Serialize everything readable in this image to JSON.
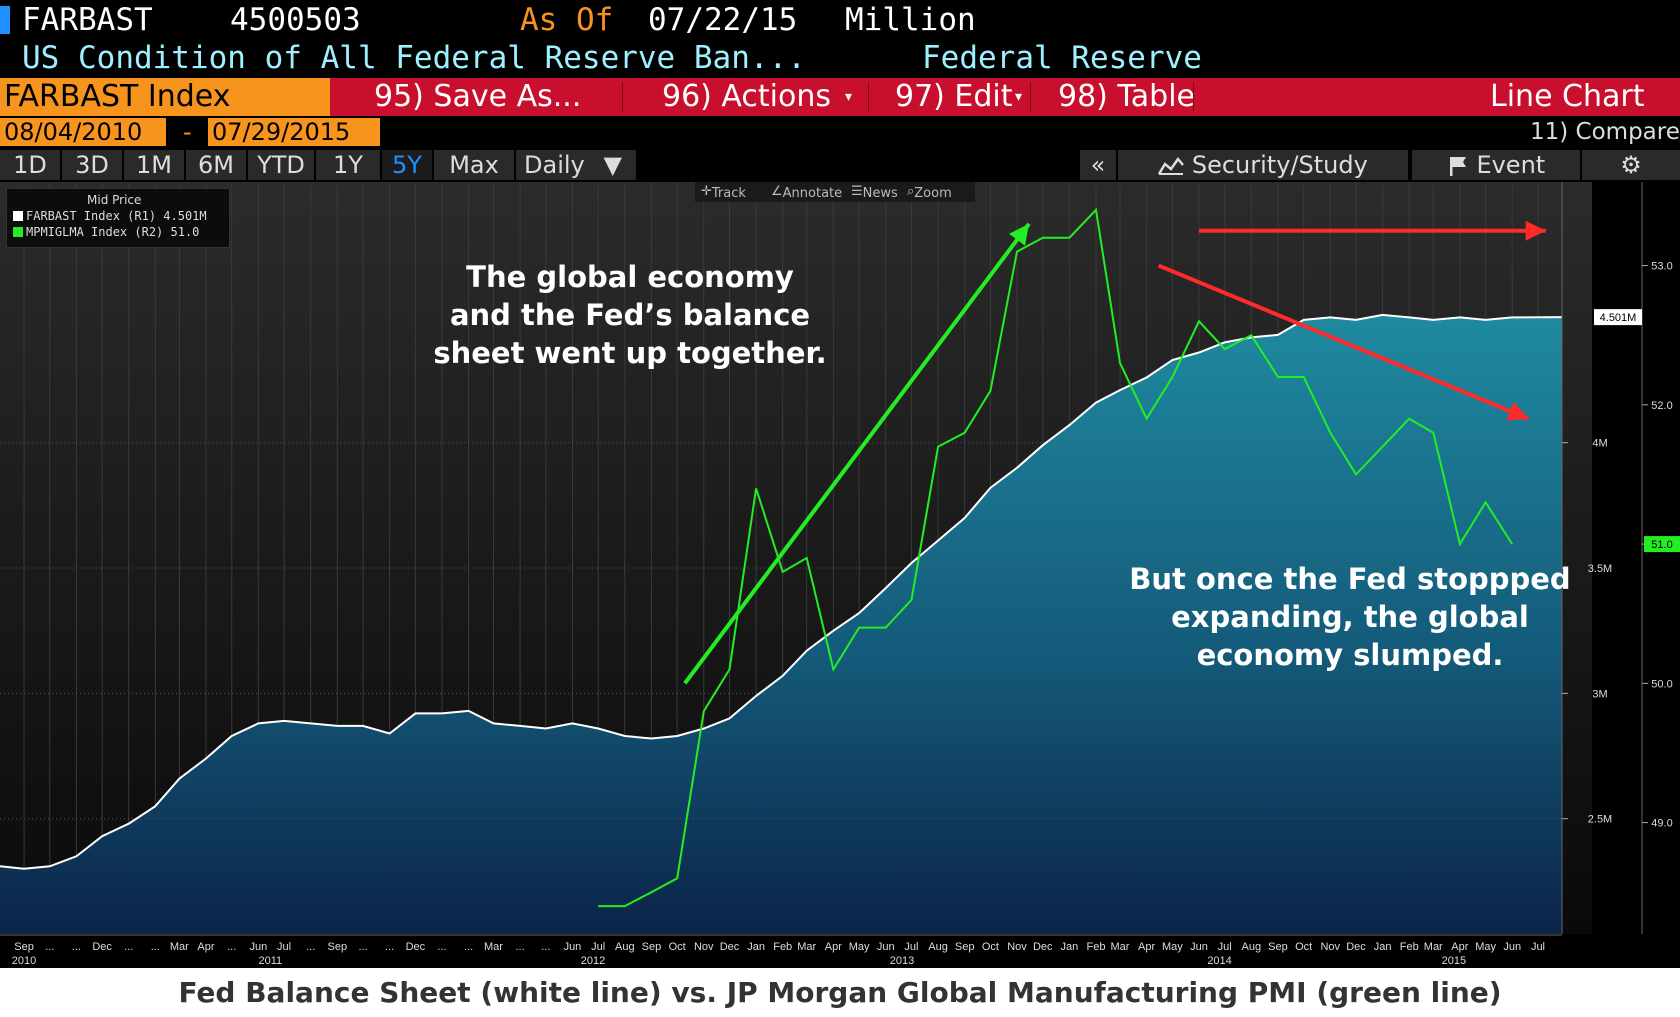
{
  "header": {
    "ticker": "FARBAST",
    "value": "4500503",
    "as_of_label": "As Of",
    "as_of_date": "07/22/15",
    "units": "Million",
    "description": "US Condition of All Federal Reserve Ban...",
    "source": "Federal Reserve"
  },
  "toolbar": {
    "index_label": "FARBAST Index",
    "save_as": "95) Save As...",
    "actions": "96) Actions",
    "edit": "97) Edit",
    "table": "98) Table",
    "chart_type": "Line Chart",
    "compare": "11) Compare"
  },
  "date_range": {
    "start": "08/04/2010",
    "dash": "-",
    "end": "07/29/2015"
  },
  "periods": [
    "1D",
    "3D",
    "1M",
    "6M",
    "YTD",
    "1Y",
    "5Y",
    "Max"
  ],
  "selected_period": "5Y",
  "frequency": "Daily",
  "frequency_arrow": "▼",
  "collapse_label": "«",
  "security_study": "Security/Study",
  "event": "Event",
  "chart_tools": {
    "track": "Track",
    "annotate": "Annotate",
    "news": "News",
    "zoom": "Zoom"
  },
  "legend": {
    "title": "Mid Price",
    "row1": "FARBAST Index  (R1)    4.501M",
    "row2": "MPMIGLMA Index  (R2) 51.0"
  },
  "annotations": {
    "up_text": "The global economy\nand the Fed’s balance\nsheet went up together.",
    "down_text": "But once the Fed stoppped\nexpanding, the global\neconomy slumped."
  },
  "caption": "Fed Balance Sheet (white line) vs. JP Morgan Global Manufacturing PMI (green line)",
  "colors": {
    "fed": "#ffffff",
    "pmi": "#22ee22",
    "accent": "#f7941d",
    "bar": "#c8102e",
    "arrow_up": "#22ee22",
    "arrow_down": "#ff2a2a"
  },
  "chart_data": {
    "type": "line",
    "xlim": [
      "2010-08-04",
      "2015-07-29"
    ],
    "y1_ticks": [
      {
        "v": 2.5,
        "label": "2.5M"
      },
      {
        "v": 3.0,
        "label": "3M"
      },
      {
        "v": 3.5,
        "label": "3.5M"
      },
      {
        "v": 4.0,
        "label": "4M"
      }
    ],
    "y1lim": [
      2.04,
      5.04
    ],
    "y1_last_label": "4.501M",
    "y2_ticks": [
      {
        "v": 49.0,
        "label": "49.0"
      },
      {
        "v": 50.0,
        "label": "50.0"
      },
      {
        "v": 51.0,
        "label": "51.0"
      },
      {
        "v": 52.0,
        "label": "52.0"
      },
      {
        "v": 53.0,
        "label": "53.0"
      }
    ],
    "y2lim": [
      48.2,
      53.6
    ],
    "y2_last_label": "51.0",
    "month_ticks": [
      {
        "d": "2010-09-01",
        "l": "Sep"
      },
      {
        "d": "2010-10-01",
        "l": "..."
      },
      {
        "d": "2010-11-01",
        "l": "..."
      },
      {
        "d": "2010-12-01",
        "l": "Dec"
      },
      {
        "d": "2011-01-01",
        "l": "..."
      },
      {
        "d": "2011-02-01",
        "l": "..."
      },
      {
        "d": "2011-03-01",
        "l": "Mar"
      },
      {
        "d": "2011-04-01",
        "l": "Apr"
      },
      {
        "d": "2011-05-01",
        "l": "..."
      },
      {
        "d": "2011-06-01",
        "l": "Jun"
      },
      {
        "d": "2011-07-01",
        "l": "Jul"
      },
      {
        "d": "2011-08-01",
        "l": "..."
      },
      {
        "d": "2011-09-01",
        "l": "Sep"
      },
      {
        "d": "2011-10-01",
        "l": "..."
      },
      {
        "d": "2011-11-01",
        "l": "..."
      },
      {
        "d": "2011-12-01",
        "l": "Dec"
      },
      {
        "d": "2012-01-01",
        "l": "..."
      },
      {
        "d": "2012-02-01",
        "l": "..."
      },
      {
        "d": "2012-03-01",
        "l": "Mar"
      },
      {
        "d": "2012-04-01",
        "l": "..."
      },
      {
        "d": "2012-05-01",
        "l": "..."
      },
      {
        "d": "2012-06-01",
        "l": "Jun"
      },
      {
        "d": "2012-07-01",
        "l": "Jul"
      },
      {
        "d": "2012-08-01",
        "l": "Aug"
      },
      {
        "d": "2012-09-01",
        "l": "Sep"
      },
      {
        "d": "2012-10-01",
        "l": "Oct"
      },
      {
        "d": "2012-11-01",
        "l": "Nov"
      },
      {
        "d": "2012-12-01",
        "l": "Dec"
      },
      {
        "d": "2013-01-01",
        "l": "Jan"
      },
      {
        "d": "2013-02-01",
        "l": "Feb"
      },
      {
        "d": "2013-03-01",
        "l": "Mar"
      },
      {
        "d": "2013-04-01",
        "l": "Apr"
      },
      {
        "d": "2013-05-01",
        "l": "May"
      },
      {
        "d": "2013-06-01",
        "l": "Jun"
      },
      {
        "d": "2013-07-01",
        "l": "Jul"
      },
      {
        "d": "2013-08-01",
        "l": "Aug"
      },
      {
        "d": "2013-09-01",
        "l": "Sep"
      },
      {
        "d": "2013-10-01",
        "l": "Oct"
      },
      {
        "d": "2013-11-01",
        "l": "Nov"
      },
      {
        "d": "2013-12-01",
        "l": "Dec"
      },
      {
        "d": "2014-01-01",
        "l": "Jan"
      },
      {
        "d": "2014-02-01",
        "l": "Feb"
      },
      {
        "d": "2014-03-01",
        "l": "Mar"
      },
      {
        "d": "2014-04-01",
        "l": "Apr"
      },
      {
        "d": "2014-05-01",
        "l": "May"
      },
      {
        "d": "2014-06-01",
        "l": "Jun"
      },
      {
        "d": "2014-07-01",
        "l": "Jul"
      },
      {
        "d": "2014-08-01",
        "l": "Aug"
      },
      {
        "d": "2014-09-01",
        "l": "Sep"
      },
      {
        "d": "2014-10-01",
        "l": "Oct"
      },
      {
        "d": "2014-11-01",
        "l": "Nov"
      },
      {
        "d": "2014-12-01",
        "l": "Dec"
      },
      {
        "d": "2015-01-01",
        "l": "Jan"
      },
      {
        "d": "2015-02-01",
        "l": "Feb"
      },
      {
        "d": "2015-03-01",
        "l": "Mar"
      },
      {
        "d": "2015-04-01",
        "l": "Apr"
      },
      {
        "d": "2015-05-01",
        "l": "May"
      },
      {
        "d": "2015-06-01",
        "l": "Jun"
      },
      {
        "d": "2015-07-01",
        "l": "Jul"
      }
    ],
    "year_labels": [
      {
        "d": "2010-09-01",
        "l": "2010"
      },
      {
        "d": "2011-06-15",
        "l": "2011"
      },
      {
        "d": "2012-06-25",
        "l": "2012"
      },
      {
        "d": "2013-06-20",
        "l": "2013"
      },
      {
        "d": "2014-06-25",
        "l": "2014"
      },
      {
        "d": "2015-03-25",
        "l": "2015"
      }
    ],
    "series": [
      {
        "name": "FARBAST Index",
        "axis": "R1",
        "units": "Million (trillions shown as M)",
        "points": [
          [
            "2010-08-04",
            2.31
          ],
          [
            "2010-09-01",
            2.3
          ],
          [
            "2010-10-01",
            2.31
          ],
          [
            "2010-11-01",
            2.35
          ],
          [
            "2010-12-01",
            2.43
          ],
          [
            "2011-01-01",
            2.48
          ],
          [
            "2011-02-01",
            2.55
          ],
          [
            "2011-03-01",
            2.66
          ],
          [
            "2011-04-01",
            2.74
          ],
          [
            "2011-05-01",
            2.83
          ],
          [
            "2011-06-01",
            2.88
          ],
          [
            "2011-07-01",
            2.89
          ],
          [
            "2011-08-01",
            2.88
          ],
          [
            "2011-09-01",
            2.87
          ],
          [
            "2011-10-01",
            2.87
          ],
          [
            "2011-11-01",
            2.84
          ],
          [
            "2011-12-01",
            2.92
          ],
          [
            "2012-01-01",
            2.92
          ],
          [
            "2012-02-01",
            2.93
          ],
          [
            "2012-03-01",
            2.88
          ],
          [
            "2012-04-01",
            2.87
          ],
          [
            "2012-05-01",
            2.86
          ],
          [
            "2012-06-01",
            2.88
          ],
          [
            "2012-07-01",
            2.86
          ],
          [
            "2012-08-01",
            2.83
          ],
          [
            "2012-09-01",
            2.82
          ],
          [
            "2012-10-01",
            2.83
          ],
          [
            "2012-11-01",
            2.86
          ],
          [
            "2012-12-01",
            2.9
          ],
          [
            "2013-01-01",
            2.99
          ],
          [
            "2013-02-01",
            3.07
          ],
          [
            "2013-03-01",
            3.17
          ],
          [
            "2013-04-01",
            3.25
          ],
          [
            "2013-05-01",
            3.32
          ],
          [
            "2013-06-01",
            3.42
          ],
          [
            "2013-07-01",
            3.52
          ],
          [
            "2013-08-01",
            3.61
          ],
          [
            "2013-09-01",
            3.7
          ],
          [
            "2013-10-01",
            3.82
          ],
          [
            "2013-11-01",
            3.9
          ],
          [
            "2013-12-01",
            3.99
          ],
          [
            "2014-01-01",
            4.07
          ],
          [
            "2014-02-01",
            4.16
          ],
          [
            "2014-03-01",
            4.21
          ],
          [
            "2014-04-01",
            4.26
          ],
          [
            "2014-05-01",
            4.33
          ],
          [
            "2014-06-01",
            4.36
          ],
          [
            "2014-07-01",
            4.4
          ],
          [
            "2014-08-01",
            4.42
          ],
          [
            "2014-09-01",
            4.43
          ],
          [
            "2014-10-01",
            4.49
          ],
          [
            "2014-11-01",
            4.5
          ],
          [
            "2014-12-01",
            4.49
          ],
          [
            "2015-01-01",
            4.51
          ],
          [
            "2015-02-01",
            4.5
          ],
          [
            "2015-03-01",
            4.49
          ],
          [
            "2015-04-01",
            4.5
          ],
          [
            "2015-05-01",
            4.49
          ],
          [
            "2015-06-01",
            4.5
          ],
          [
            "2015-07-29",
            4.501
          ]
        ]
      },
      {
        "name": "MPMIGLMA Index",
        "axis": "R2",
        "points": [
          [
            "2012-07-01",
            48.4
          ],
          [
            "2012-08-01",
            48.4
          ],
          [
            "2012-09-01",
            48.5
          ],
          [
            "2012-10-01",
            48.6
          ],
          [
            "2012-11-01",
            49.8
          ],
          [
            "2012-12-01",
            50.1
          ],
          [
            "2013-01-01",
            51.4
          ],
          [
            "2013-02-01",
            50.8
          ],
          [
            "2013-03-01",
            50.9
          ],
          [
            "2013-04-01",
            50.1
          ],
          [
            "2013-05-01",
            50.4
          ],
          [
            "2013-06-01",
            50.4
          ],
          [
            "2013-07-01",
            50.6
          ],
          [
            "2013-08-01",
            51.7
          ],
          [
            "2013-09-01",
            51.8
          ],
          [
            "2013-10-01",
            52.1
          ],
          [
            "2013-11-01",
            53.1
          ],
          [
            "2013-12-01",
            53.2
          ],
          [
            "2014-01-01",
            53.2
          ],
          [
            "2014-02-01",
            53.4
          ],
          [
            "2014-03-01",
            52.3
          ],
          [
            "2014-04-01",
            51.9
          ],
          [
            "2014-05-01",
            52.2
          ],
          [
            "2014-06-01",
            52.6
          ],
          [
            "2014-07-01",
            52.4
          ],
          [
            "2014-08-01",
            52.5
          ],
          [
            "2014-09-01",
            52.2
          ],
          [
            "2014-10-01",
            52.2
          ],
          [
            "2014-11-01",
            51.8
          ],
          [
            "2014-12-01",
            51.5
          ],
          [
            "2015-01-01",
            51.7
          ],
          [
            "2015-02-01",
            51.9
          ],
          [
            "2015-03-01",
            51.8
          ],
          [
            "2015-04-01",
            51.0
          ],
          [
            "2015-05-01",
            51.3
          ],
          [
            "2015-06-01",
            51.0
          ]
        ]
      }
    ],
    "arrows": [
      {
        "series_axis": "R2",
        "from": [
          "2012-10-10",
          50.0
        ],
        "to": [
          "2013-11-15",
          53.3
        ],
        "color": "green"
      },
      {
        "series_axis": "R2",
        "from": [
          "2014-04-15",
          53.0
        ],
        "to": [
          "2015-06-20",
          51.9
        ],
        "color": "red"
      },
      {
        "series_axis": "R2",
        "from": [
          "2014-06-01",
          53.25
        ],
        "to": [
          "2015-07-10",
          53.25
        ],
        "color": "red"
      }
    ]
  }
}
